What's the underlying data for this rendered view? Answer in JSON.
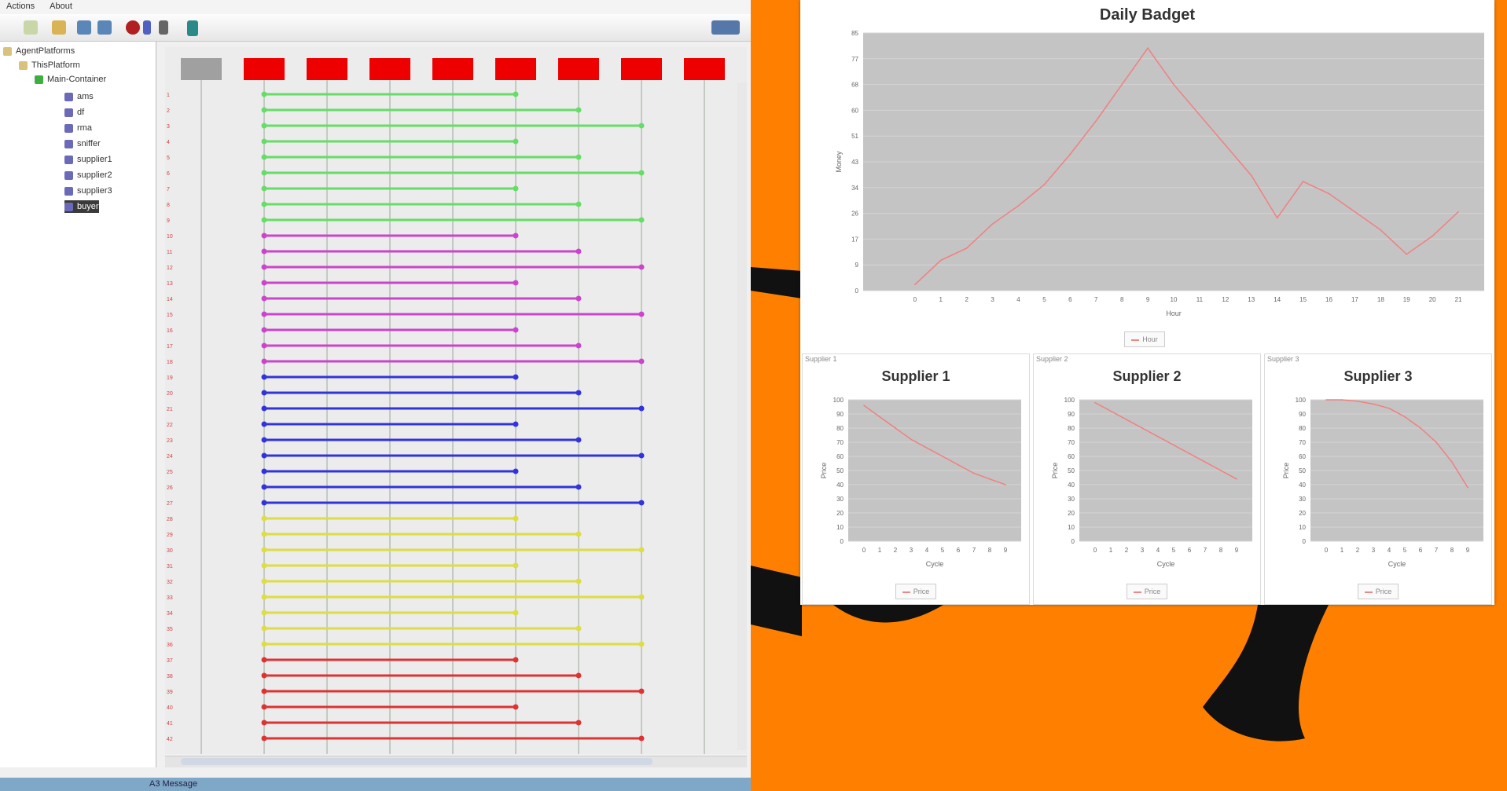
{
  "sniffer": {
    "menu": [
      "Actions",
      "About"
    ],
    "tree": {
      "root": "AgentPlatforms",
      "platform": "ThisPlatform",
      "container": "Main-Container",
      "agents": [
        "ams",
        "df",
        "rma",
        "sniffer",
        "supplier1",
        "supplier2",
        "supplier3",
        "buyer"
      ]
    },
    "status": "A3 Message"
  },
  "sequence": {
    "lifeline_colors": [
      "#a0a0a0",
      "#ee0000",
      "#ee0000",
      "#ee0000",
      "#ee0000",
      "#ee0000",
      "#ee0000",
      "#ee0000",
      "#ee0000"
    ],
    "groups": [
      {
        "color": "#66dd66",
        "count": 9
      },
      {
        "color": "#cc44cc",
        "count": 9
      },
      {
        "color": "#3333dd",
        "count": 9
      },
      {
        "color": "#dddd44",
        "count": 9
      },
      {
        "color": "#dd3333",
        "count": 6
      }
    ]
  },
  "charts": {
    "main": {
      "title": "Daily Badget",
      "xlabel": "Hour",
      "ylabel": "Money",
      "legend": "Hour"
    },
    "panels": [
      {
        "tab": "Supplier 1",
        "title": "Supplier 1",
        "xlabel": "Cycle",
        "ylabel": "Price",
        "legend": "Price"
      },
      {
        "tab": "Supplier 2",
        "title": "Supplier 2",
        "xlabel": "Cycle",
        "ylabel": "Price",
        "legend": "Price"
      },
      {
        "tab": "Supplier 3",
        "title": "Supplier 3",
        "xlabel": "Cycle",
        "ylabel": "Price",
        "legend": "Price"
      }
    ]
  },
  "chart_data": [
    {
      "type": "line",
      "title": "Daily Badget",
      "xlabel": "Hour",
      "ylabel": "Money",
      "x": [
        0,
        1,
        2,
        3,
        4,
        5,
        6,
        7,
        8,
        9,
        10,
        11,
        12,
        13,
        14,
        15,
        16,
        17,
        18,
        19,
        20,
        21
      ],
      "series": [
        {
          "name": "Hour",
          "values": [
            2,
            10,
            14,
            22,
            28,
            35,
            45,
            56,
            68,
            80,
            68,
            58,
            48,
            38,
            24,
            36,
            32,
            26,
            20,
            12,
            18,
            26
          ]
        }
      ],
      "xlim": [
        -2,
        22
      ],
      "ylim": [
        0,
        85
      ],
      "line_color": "#f08080",
      "grid": true
    },
    {
      "type": "line",
      "title": "Supplier 1",
      "xlabel": "Cycle",
      "ylabel": "Price",
      "x": [
        0,
        1,
        2,
        3,
        4,
        5,
        6,
        7,
        8,
        9
      ],
      "series": [
        {
          "name": "Price",
          "values": [
            96,
            88,
            80,
            72,
            66,
            60,
            54,
            48,
            44,
            40
          ]
        }
      ],
      "xlim": [
        -1,
        10
      ],
      "ylim": [
        0,
        100
      ],
      "line_color": "#f08080",
      "grid": true
    },
    {
      "type": "line",
      "title": "Supplier 2",
      "xlabel": "Cycle",
      "ylabel": "Price",
      "x": [
        0,
        1,
        2,
        3,
        4,
        5,
        6,
        7,
        8,
        9
      ],
      "series": [
        {
          "name": "Price",
          "values": [
            98,
            92,
            86,
            80,
            74,
            68,
            62,
            56,
            50,
            44
          ]
        }
      ],
      "xlim": [
        -1,
        10
      ],
      "ylim": [
        0,
        100
      ],
      "line_color": "#f08080",
      "grid": true
    },
    {
      "type": "line",
      "title": "Supplier 3",
      "xlabel": "Cycle",
      "ylabel": "Price",
      "x": [
        0,
        1,
        2,
        3,
        4,
        5,
        6,
        7,
        8,
        9
      ],
      "series": [
        {
          "name": "Price",
          "values": [
            100,
            100,
            99,
            97,
            94,
            88,
            80,
            70,
            56,
            38
          ]
        }
      ],
      "xlim": [
        -1,
        10
      ],
      "ylim": [
        0,
        100
      ],
      "line_color": "#f08080",
      "grid": true
    }
  ]
}
